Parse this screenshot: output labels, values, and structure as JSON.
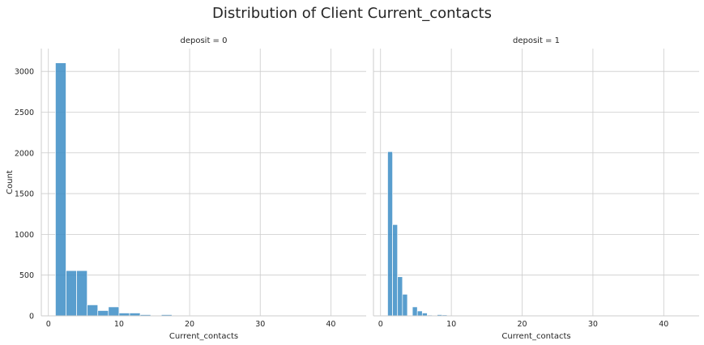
{
  "title": "Distribution of Client Current_contacts",
  "chart_data": [
    {
      "type": "bar",
      "subtitle": "deposit = 0",
      "xlabel": "Current_contacts",
      "ylabel": "Count",
      "xlim": [
        -1,
        45
      ],
      "ylim": [
        0,
        3280
      ],
      "xticks": [
        0,
        10,
        20,
        30,
        40
      ],
      "yticks": [
        0,
        500,
        1000,
        1500,
        2000,
        2500,
        3000
      ],
      "grid": true,
      "color": "#3c8dc5",
      "bins": [
        {
          "x0": 1.0,
          "x1": 2.5,
          "value": 3105
        },
        {
          "x0": 2.5,
          "x1": 4.0,
          "value": 555
        },
        {
          "x0": 4.0,
          "x1": 5.5,
          "value": 555
        },
        {
          "x0": 5.5,
          "x1": 7.0,
          "value": 135
        },
        {
          "x0": 7.0,
          "x1": 8.5,
          "value": 65
        },
        {
          "x0": 8.5,
          "x1": 10.0,
          "value": 110
        },
        {
          "x0": 10.0,
          "x1": 11.5,
          "value": 35
        },
        {
          "x0": 11.5,
          "x1": 13.0,
          "value": 35
        },
        {
          "x0": 13.0,
          "x1": 14.5,
          "value": 15
        },
        {
          "x0": 14.5,
          "x1": 16.0,
          "value": 5
        },
        {
          "x0": 16.0,
          "x1": 17.5,
          "value": 15
        },
        {
          "x0": 17.5,
          "x1": 19.0,
          "value": 5
        },
        {
          "x0": 19.0,
          "x1": 20.5,
          "value": 3
        },
        {
          "x0": 20.5,
          "x1": 22.0,
          "value": 2
        },
        {
          "x0": 22.0,
          "x1": 23.5,
          "value": 2
        },
        {
          "x0": 23.5,
          "x1": 25.0,
          "value": 1
        },
        {
          "x0": 25.0,
          "x1": 26.5,
          "value": 1
        },
        {
          "x0": 26.5,
          "x1": 28.0,
          "value": 1
        },
        {
          "x0": 28.0,
          "x1": 29.5,
          "value": 1
        },
        {
          "x0": 29.5,
          "x1": 31.0,
          "value": 1
        },
        {
          "x0": 32.5,
          "x1": 34.0,
          "value": 1
        },
        {
          "x0": 37.0,
          "x1": 38.5,
          "value": 1
        },
        {
          "x0": 41.5,
          "x1": 43.0,
          "value": 1
        }
      ]
    },
    {
      "type": "bar",
      "subtitle": "deposit = 1",
      "xlabel": "Current_contacts",
      "ylabel": "",
      "xlim": [
        -1,
        45
      ],
      "ylim": [
        0,
        3280
      ],
      "xticks": [
        0,
        10,
        20,
        30,
        40
      ],
      "yticks": [
        0,
        500,
        1000,
        1500,
        2000,
        2500,
        3000
      ],
      "grid": true,
      "color": "#3c8dc5",
      "bins": [
        {
          "x0": 1.0,
          "x1": 1.7,
          "value": 2015
        },
        {
          "x0": 1.7,
          "x1": 2.4,
          "value": 1120
        },
        {
          "x0": 2.4,
          "x1": 3.1,
          "value": 480
        },
        {
          "x0": 3.1,
          "x1": 3.8,
          "value": 265
        },
        {
          "x0": 4.5,
          "x1": 5.2,
          "value": 110
        },
        {
          "x0": 5.2,
          "x1": 5.9,
          "value": 60
        },
        {
          "x0": 5.9,
          "x1": 6.6,
          "value": 35
        },
        {
          "x0": 6.6,
          "x1": 7.3,
          "value": 10
        },
        {
          "x0": 8.0,
          "x1": 8.7,
          "value": 15
        },
        {
          "x0": 8.7,
          "x1": 9.4,
          "value": 12
        },
        {
          "x0": 10.1,
          "x1": 10.8,
          "value": 5
        },
        {
          "x0": 11.5,
          "x1": 12.2,
          "value": 3
        },
        {
          "x0": 12.9,
          "x1": 13.6,
          "value": 4
        },
        {
          "x0": 14.3,
          "x1": 15.0,
          "value": 3
        },
        {
          "x0": 15.7,
          "x1": 16.4,
          "value": 2
        },
        {
          "x0": 17.1,
          "x1": 17.8,
          "value": 2
        },
        {
          "x0": 41.3,
          "x1": 42.0,
          "value": 1
        }
      ]
    }
  ]
}
